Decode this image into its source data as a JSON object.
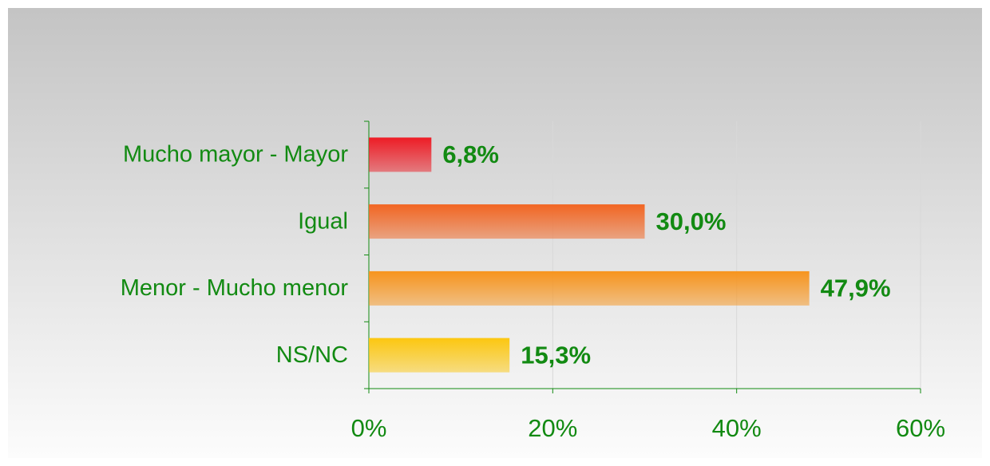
{
  "chart_data": {
    "type": "hbar",
    "categories": [
      "Mucho mayor - Mayor",
      "Igual",
      "Menor - Mucho menor",
      "NS/NC"
    ],
    "values": [
      6.8,
      30.0,
      47.9,
      15.3
    ],
    "value_labels": [
      "6,8%",
      "30,0%",
      "47,9%",
      "15,3%"
    ],
    "colors": [
      "#ee1c25",
      "#f26522",
      "#f7941d",
      "#fcc710"
    ],
    "xlim": [
      0,
      60
    ],
    "xticks": [
      {
        "value": 0,
        "label": "0%"
      },
      {
        "value": 20,
        "label": "20%"
      },
      {
        "value": 40,
        "label": "40%"
      },
      {
        "value": 60,
        "label": "60%"
      }
    ],
    "grid": true
  }
}
